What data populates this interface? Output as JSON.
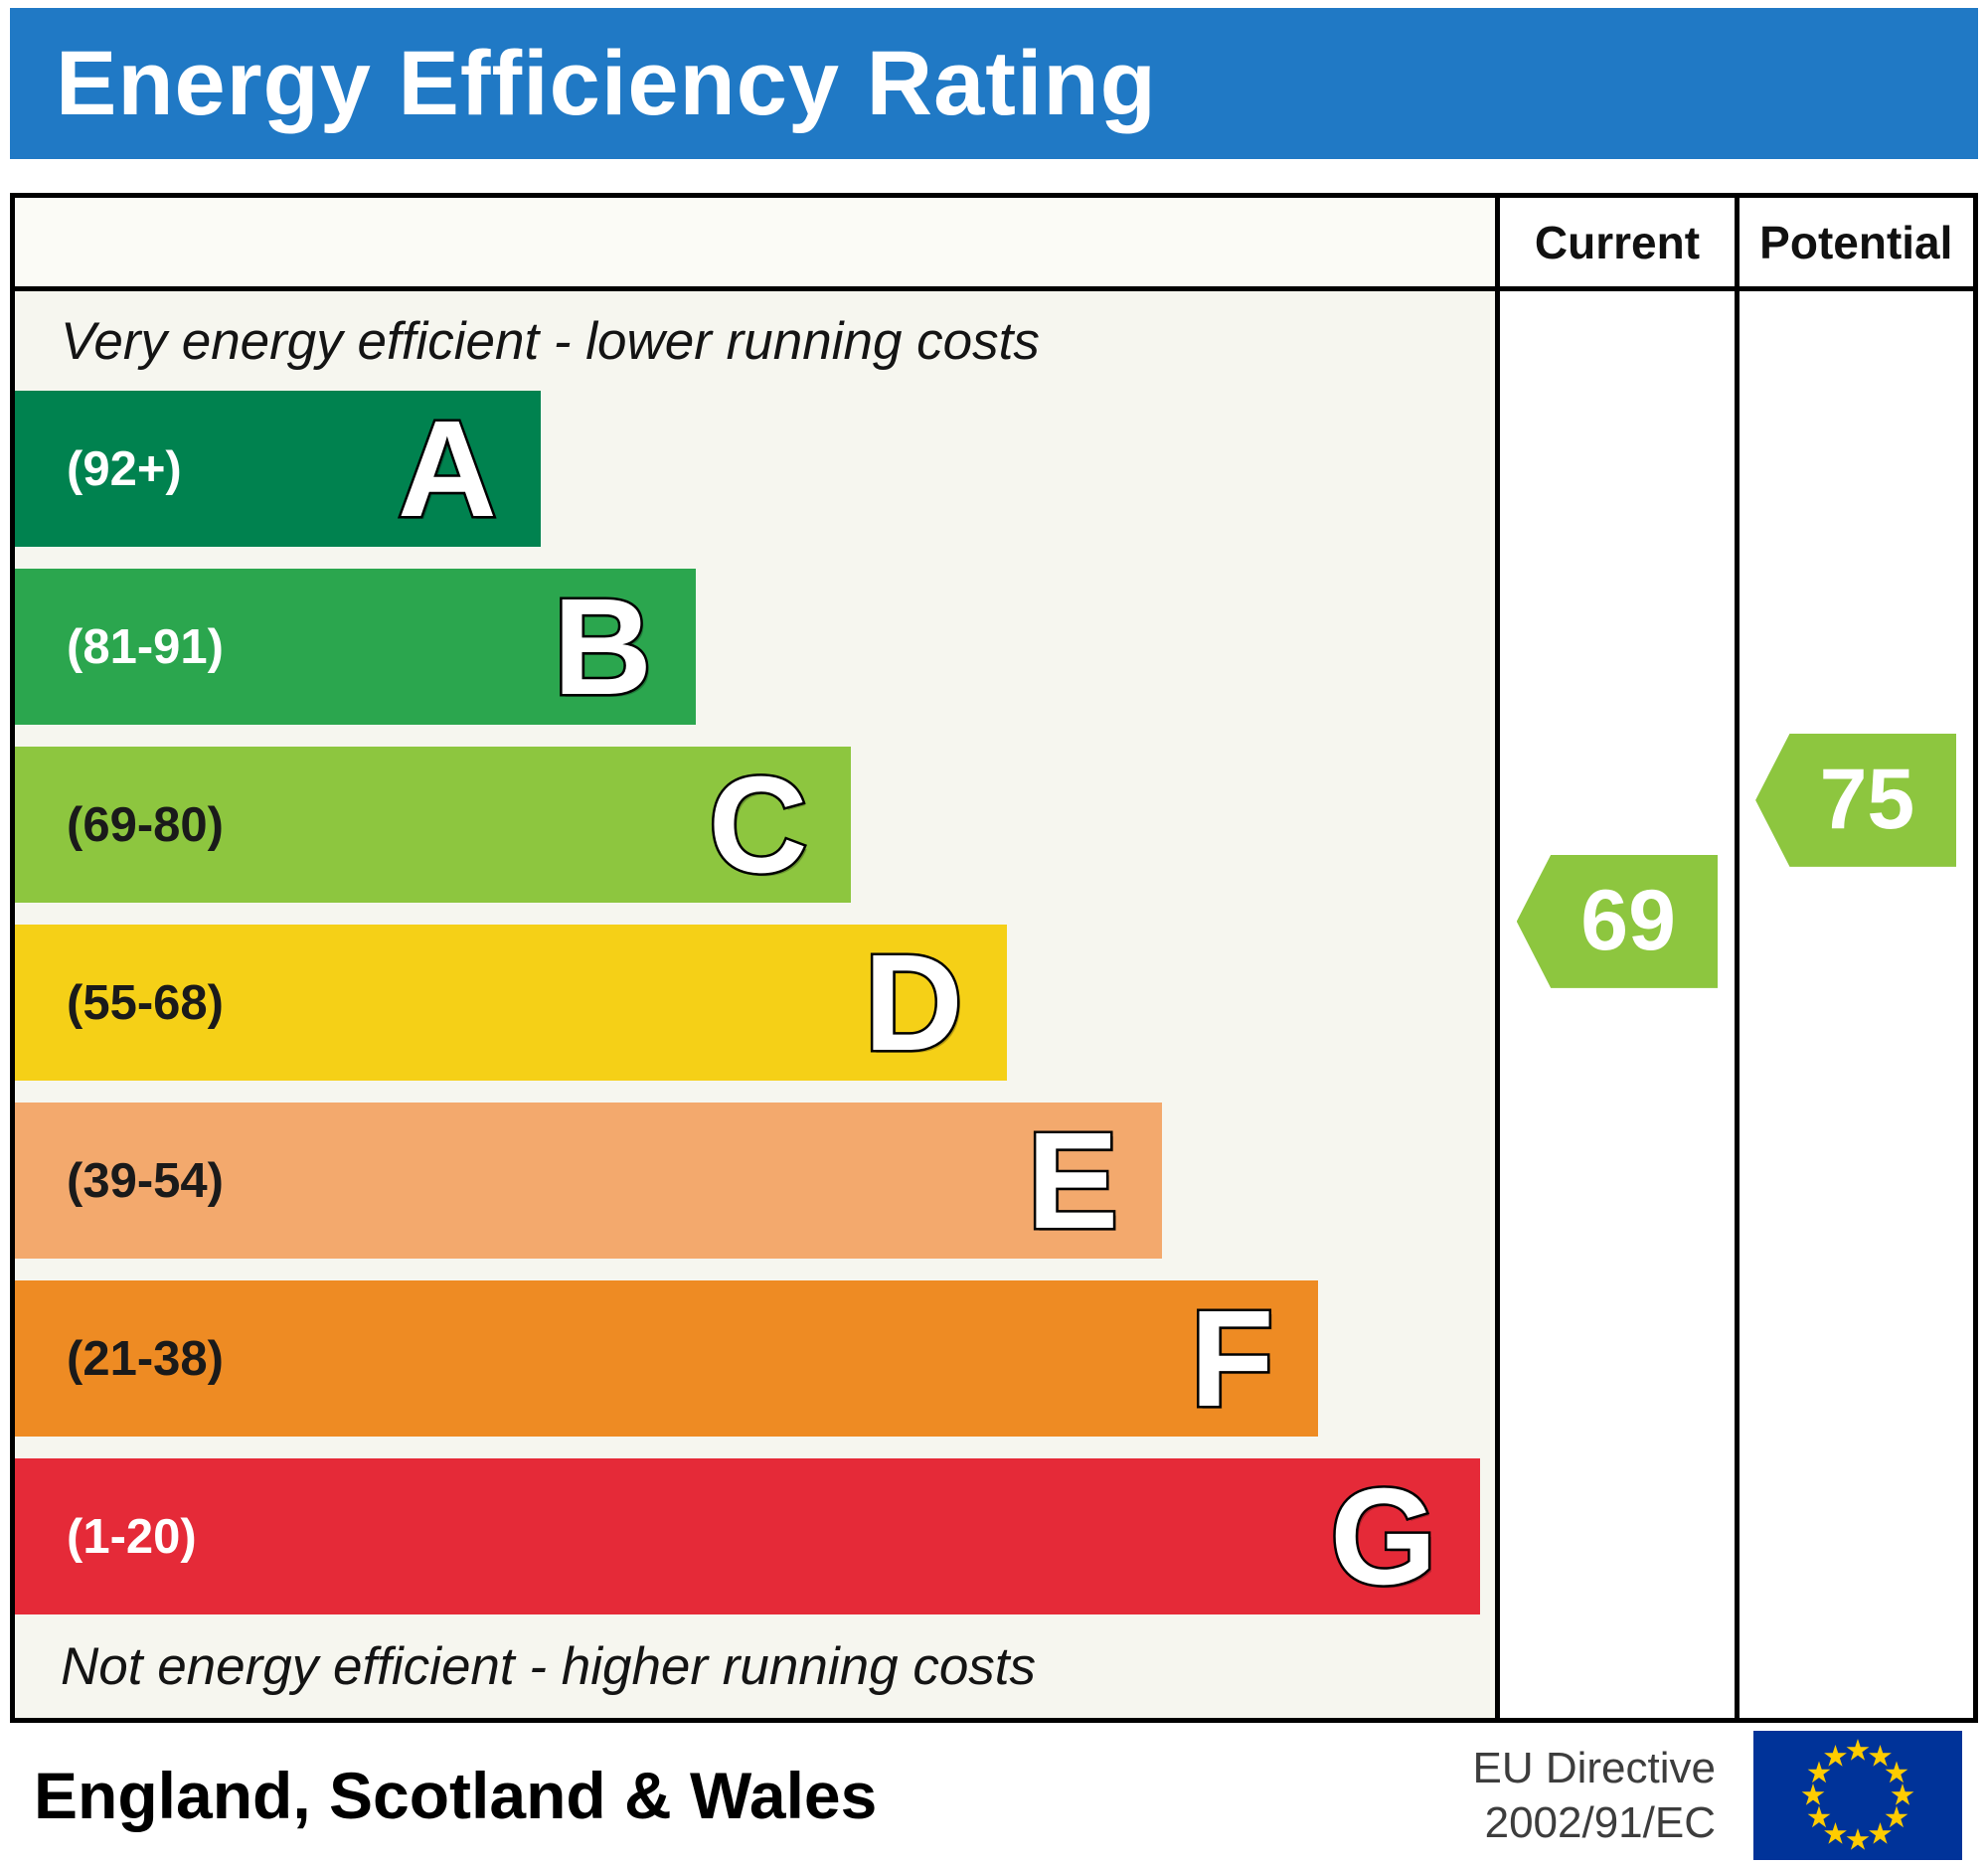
{
  "title": "Energy Efficiency Rating",
  "columns": {
    "current": "Current",
    "potential": "Potential"
  },
  "notes": {
    "top": "Very energy efficient - lower running costs",
    "bottom": "Not energy efficient - higher running costs"
  },
  "bands": [
    {
      "letter": "A",
      "range": "(92+)",
      "color": "#00824f",
      "label_color": "#ffffff",
      "width_pct": 35.5
    },
    {
      "letter": "B",
      "range": "(81-91)",
      "color": "#2ba64e",
      "label_color": "#ffffff",
      "width_pct": 46
    },
    {
      "letter": "C",
      "range": "(69-80)",
      "color": "#8dc63f",
      "label_color": "#1a1a1a",
      "width_pct": 56.5
    },
    {
      "letter": "D",
      "range": "(55-68)",
      "color": "#f5d017",
      "label_color": "#1a1a1a",
      "width_pct": 67
    },
    {
      "letter": "E",
      "range": "(39-54)",
      "color": "#f3a96d",
      "label_color": "#1a1a1a",
      "width_pct": 77.5
    },
    {
      "letter": "F",
      "range": "(21-38)",
      "color": "#ee8b23",
      "label_color": "#1a1a1a",
      "width_pct": 88
    },
    {
      "letter": "G",
      "range": "(1-20)",
      "color": "#e52a38",
      "label_color": "#ffffff",
      "width_pct": 99
    }
  ],
  "current": {
    "value": "69",
    "color": "#8dc63f"
  },
  "potential": {
    "value": "75",
    "color": "#8dc63f"
  },
  "footer": {
    "region": "England, Scotland & Wales",
    "directive_line1": "EU Directive",
    "directive_line2": "2002/91/EC"
  },
  "colors": {
    "header_blue": "#2079c5",
    "eu_flag_blue": "#003399",
    "eu_star_yellow": "#ffcc00"
  },
  "chart_data": {
    "type": "bar",
    "title": "Energy Efficiency Rating",
    "categories": [
      "A (92+)",
      "B (81-91)",
      "C (69-80)",
      "D (55-68)",
      "E (39-54)",
      "F (21-38)",
      "G (1-20)"
    ],
    "values": [
      35.5,
      46,
      56.5,
      67,
      77.5,
      88,
      99
    ],
    "value_note": "relative bar widths in % of chart area (EPC band ladder)",
    "band_ranges": [
      "92+",
      "81-91",
      "69-80",
      "55-68",
      "39-54",
      "21-38",
      "1-20"
    ],
    "annotations": [
      {
        "label": "Current",
        "value": 69,
        "band": "C"
      },
      {
        "label": "Potential",
        "value": 75,
        "band": "C"
      }
    ],
    "top_note": "Very energy efficient - lower running costs",
    "bottom_note": "Not energy efficient - higher running costs",
    "region": "England, Scotland & Wales",
    "directive": "EU Directive 2002/91/EC",
    "legend_position": "none",
    "grid": false
  }
}
